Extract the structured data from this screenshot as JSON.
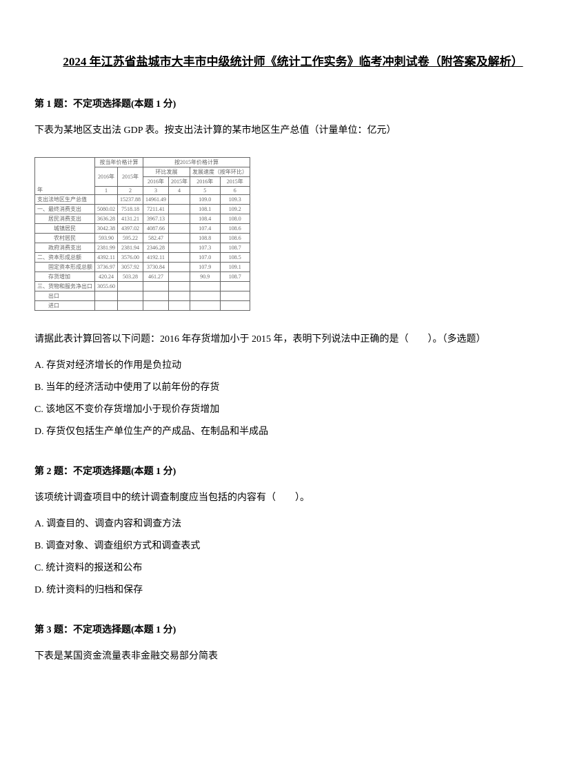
{
  "title": "2024 年江苏省盐城市大丰市中级统计师《统计工作实务》临考冲刺试卷（附答案及解析）",
  "q1": {
    "header": "第 1 题：不定项选择题(本题 1 分)",
    "intro": "下表为某地区支出法 GDP 表。按支出法计算的某市地区生产总值（计量单位：亿元）",
    "table": {
      "header_row1_col2": "按当年价格计算",
      "header_row1_col3": "按2015年价格计算",
      "header_row2_col3": "环比发展",
      "header_row2_col5": "发展速度（按年环比）",
      "header_row3_col1": "2016年",
      "header_row3_col2": "2015年",
      "header_row3_col3": "2016年",
      "header_row3_col4": "2015年",
      "header_row3_col5": "2016年",
      "header_row3_col6": "2015年",
      "header_row4_col1": "1",
      "header_row4_col2": "2",
      "header_row4_col3": "3",
      "header_row4_col4": "4",
      "header_row4_col5": "5",
      "header_row4_col6": "6",
      "header_label": "年",
      "rows": [
        {
          "label": "支出法地区生产总值",
          "c1": "",
          "c2": "15237.88",
          "c3": "14961.49",
          "c4": "",
          "c5": "109.0",
          "c6": "109.3"
        },
        {
          "label": "一、最终消费支出",
          "c1": "5080.02",
          "c2": "7518.18",
          "c3": "7211.41",
          "c4": "",
          "c5": "108.1",
          "c6": "109.2"
        },
        {
          "label": "　　居民消费支出",
          "c1": "3636.28",
          "c2": "4131.21",
          "c3": "3967.13",
          "c4": "",
          "c5": "108.4",
          "c6": "108.0"
        },
        {
          "label": "　　　城镇居民",
          "c1": "3042.38",
          "c2": "4397.02",
          "c3": "4087.66",
          "c4": "",
          "c5": "107.4",
          "c6": "108.6"
        },
        {
          "label": "　　　农村居民",
          "c1": "593.90",
          "c2": "595.22",
          "c3": "582.47",
          "c4": "",
          "c5": "108.8",
          "c6": "108.6"
        },
        {
          "label": "　　政府消费支出",
          "c1": "2381.99",
          "c2": "2381.94",
          "c3": "2346.28",
          "c4": "",
          "c5": "107.3",
          "c6": "108.7"
        },
        {
          "label": "二、资本形成总额",
          "c1": "4392.11",
          "c2": "3576.00",
          "c3": "4192.11",
          "c4": "",
          "c5": "107.0",
          "c6": "108.5"
        },
        {
          "label": "　　固定资本形成总额",
          "c1": "3736.97",
          "c2": "3057.92",
          "c3": "3730.84",
          "c4": "",
          "c5": "107.9",
          "c6": "109.1"
        },
        {
          "label": "　　存货增加",
          "c1": "420.24",
          "c2": "503.28",
          "c3": "461.27",
          "c4": "",
          "c5": "90.9",
          "c6": "108.7"
        },
        {
          "label": "三、货物和服务净出口",
          "c1": "3055.60",
          "c2": "",
          "c3": "",
          "c4": "",
          "c5": "",
          "c6": ""
        },
        {
          "label": "　　出口",
          "c1": "",
          "c2": "",
          "c3": "",
          "c4": "",
          "c5": "",
          "c6": ""
        },
        {
          "label": "　　进口",
          "c1": "",
          "c2": "",
          "c3": "",
          "c4": "",
          "c5": "",
          "c6": ""
        }
      ]
    },
    "question": "请据此表计算回答以下问题：2016 年存货增加小于 2015 年，表明下列说法中正确的是（　　）。（多选题）",
    "options": {
      "a": "A. 存货对经济增长的作用是负拉动",
      "b": "B. 当年的经济活动中使用了以前年份的存货",
      "c": "C. 该地区不变价存货增加小于现价存货增加",
      "d": "D. 存货仅包括生产单位生产的产成品、在制品和半成品"
    }
  },
  "q2": {
    "header": "第 2 题：不定项选择题(本题 1 分)",
    "question": "该项统计调查项目中的统计调查制度应当包括的内容有（　　）。",
    "options": {
      "a": "A. 调查目的、调查内容和调查方法",
      "b": "B. 调查对象、调查组织方式和调查表式",
      "c": "C. 统计资料的报送和公布",
      "d": "D. 统计资料的归档和保存"
    }
  },
  "q3": {
    "header": "第 3 题：不定项选择题(本题 1 分)",
    "question": "下表是某国资金流量表非金融交易部分简表"
  }
}
